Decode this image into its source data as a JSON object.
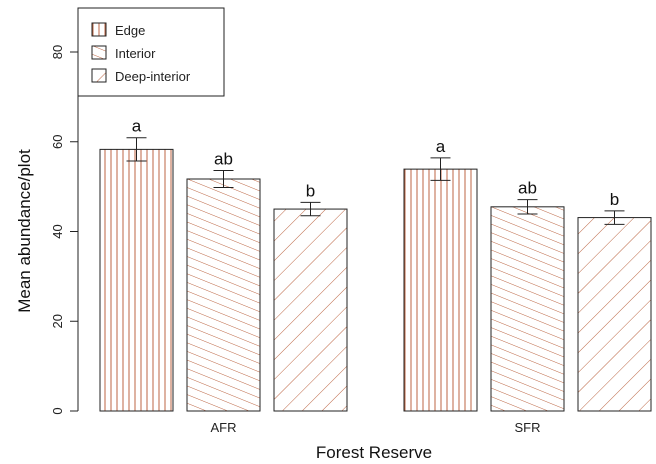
{
  "chart_data": {
    "type": "bar",
    "xlabel": "Forest Reserve",
    "ylabel": "Mean abundance/plot",
    "ylim": [
      0,
      80
    ],
    "yticks": [
      0,
      20,
      40,
      60,
      80
    ],
    "categories": [
      "AFR",
      "SFR"
    ],
    "series": [
      {
        "name": "Edge",
        "values": [
          58.3,
          53.9
        ],
        "errors": [
          2.6,
          2.5
        ],
        "letters": [
          "a",
          "a"
        ],
        "pattern": "vertical"
      },
      {
        "name": "Interior",
        "values": [
          51.7,
          45.5
        ],
        "errors": [
          1.9,
          1.6
        ],
        "letters": [
          "ab",
          "ab"
        ],
        "pattern": "shallow-diagonal"
      },
      {
        "name": "Deep-interior",
        "values": [
          45.0,
          43.1
        ],
        "errors": [
          1.5,
          1.5
        ],
        "letters": [
          "b",
          "b"
        ],
        "pattern": "steep-diagonal"
      }
    ],
    "legend_position": "top-left",
    "grid": false,
    "colors": {
      "hatch": "#b5542e",
      "outline": "#222222"
    }
  }
}
